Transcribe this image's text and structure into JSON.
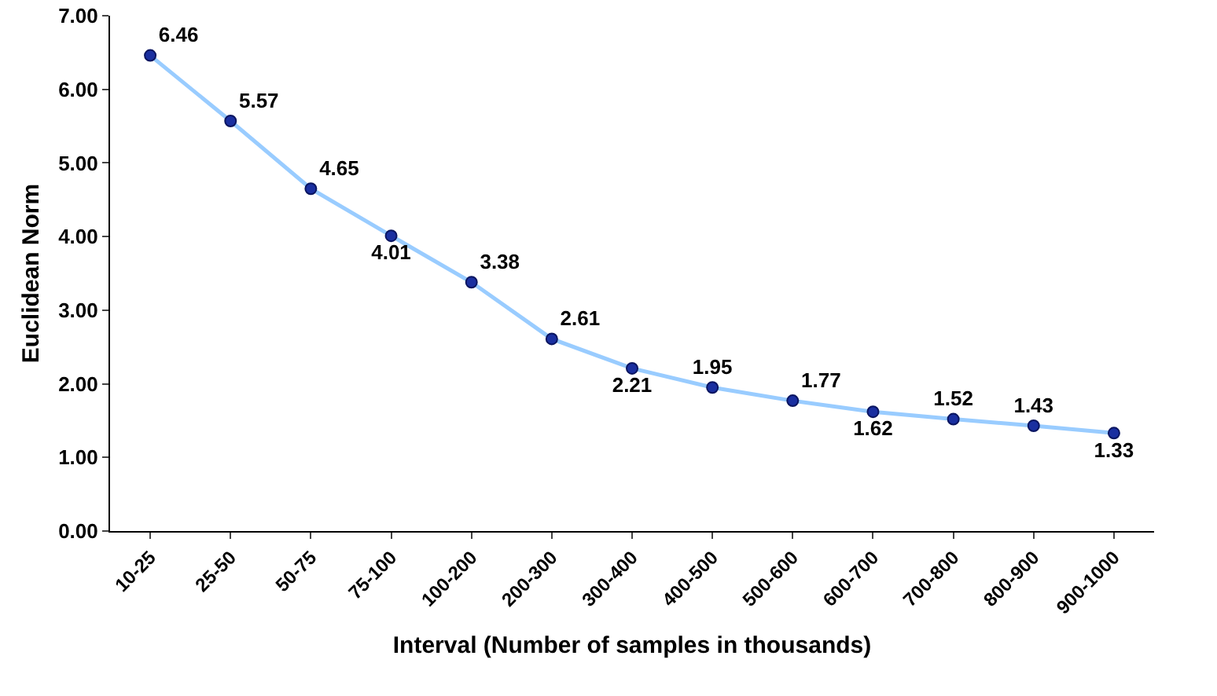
{
  "chart_data": {
    "type": "line",
    "xlabel": "Interval (Number of samples in thousands)",
    "ylabel": "Euclidean Norm",
    "categories": [
      "10-25",
      "25-50",
      "50-75",
      "75-100",
      "100-200",
      "200-300",
      "300-400",
      "400-500",
      "500-600",
      "600-700",
      "700-800",
      "800-900",
      "900-1000"
    ],
    "values": [
      6.46,
      5.57,
      4.65,
      4.01,
      3.38,
      2.61,
      2.21,
      1.95,
      1.77,
      1.62,
      1.52,
      1.43,
      1.33
    ],
    "color": "#99ccff",
    "marker": "circle",
    "data_labels": true,
    "grid": false,
    "ylim": [
      0,
      7
    ],
    "yticks": [
      {
        "value": 0,
        "label": "0.00"
      },
      {
        "value": 1,
        "label": "1.00"
      },
      {
        "value": 2,
        "label": "2.00"
      },
      {
        "value": 3,
        "label": "3.00"
      },
      {
        "value": 4,
        "label": "4.00"
      },
      {
        "value": 5,
        "label": "5.00"
      },
      {
        "value": 6,
        "label": "6.00"
      },
      {
        "value": 7,
        "label": "7.00"
      }
    ]
  }
}
